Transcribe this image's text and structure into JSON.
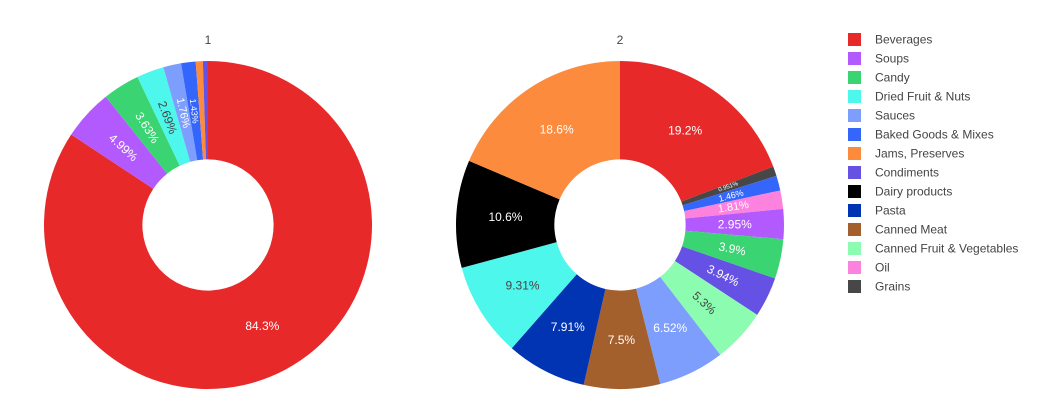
{
  "legend": {
    "items": [
      {
        "label": "Beverages",
        "color": "#e8292a"
      },
      {
        "label": "Soups",
        "color": "#b25afd"
      },
      {
        "label": "Candy",
        "color": "#3ad572"
      },
      {
        "label": "Dried Fruit & Nuts",
        "color": "#4ef7ec"
      },
      {
        "label": "Sauces",
        "color": "#7e9efe"
      },
      {
        "label": "Baked Goods & Mixes",
        "color": "#3466fc"
      },
      {
        "label": "Jams, Preserves",
        "color": "#fd8b3d"
      },
      {
        "label": "Condiments",
        "color": "#6552e5"
      },
      {
        "label": "Dairy products",
        "color": "#000000"
      },
      {
        "label": "Pasta",
        "color": "#0134b3"
      },
      {
        "label": "Canned Meat",
        "color": "#a35f2c"
      },
      {
        "label": "Canned Fruit & Vegetables",
        "color": "#8cfcb1"
      },
      {
        "label": "Oil",
        "color": "#fd82de"
      },
      {
        "label": "Grains",
        "color": "#474747"
      }
    ]
  },
  "chart_data": [
    {
      "type": "pie",
      "title": "1",
      "hole": 0.4,
      "labels": [
        "Beverages",
        "Soups",
        "Candy",
        "Dried Fruit & Nuts",
        "Sauces",
        "Baked Goods & Mixes",
        "Jams, Preserves",
        "Condiments"
      ],
      "values": [
        84.3,
        4.99,
        3.63,
        2.69,
        1.76,
        1.43,
        0.7,
        0.5
      ],
      "text": [
        "84.3%",
        "4.99%",
        "3.63%",
        "2.69%",
        "1.76%",
        "1.43%",
        "",
        ""
      ]
    },
    {
      "type": "pie",
      "title": "2",
      "hole": 0.4,
      "labels": [
        "Beverages",
        "Grains",
        "Baked Goods & Mixes",
        "Oil",
        "Soups",
        "Candy",
        "Condiments",
        "Canned Fruit & Vegetables",
        "Sauces",
        "Canned Meat",
        "Pasta",
        "Dried Fruit & Nuts",
        "Dairy products",
        "Jams, Preserves"
      ],
      "values": [
        19.2,
        0.951,
        1.46,
        1.81,
        2.95,
        3.9,
        3.94,
        5.3,
        6.52,
        7.5,
        7.91,
        9.31,
        10.6,
        18.6
      ],
      "text": [
        "19.2%",
        "0.951%",
        "1.46%",
        "1.81%",
        "2.95%",
        "3.9%",
        "3.94%",
        "5.3%",
        "6.52%",
        "7.5%",
        "7.91%",
        "9.31%",
        "10.6%",
        "18.6%"
      ]
    }
  ]
}
